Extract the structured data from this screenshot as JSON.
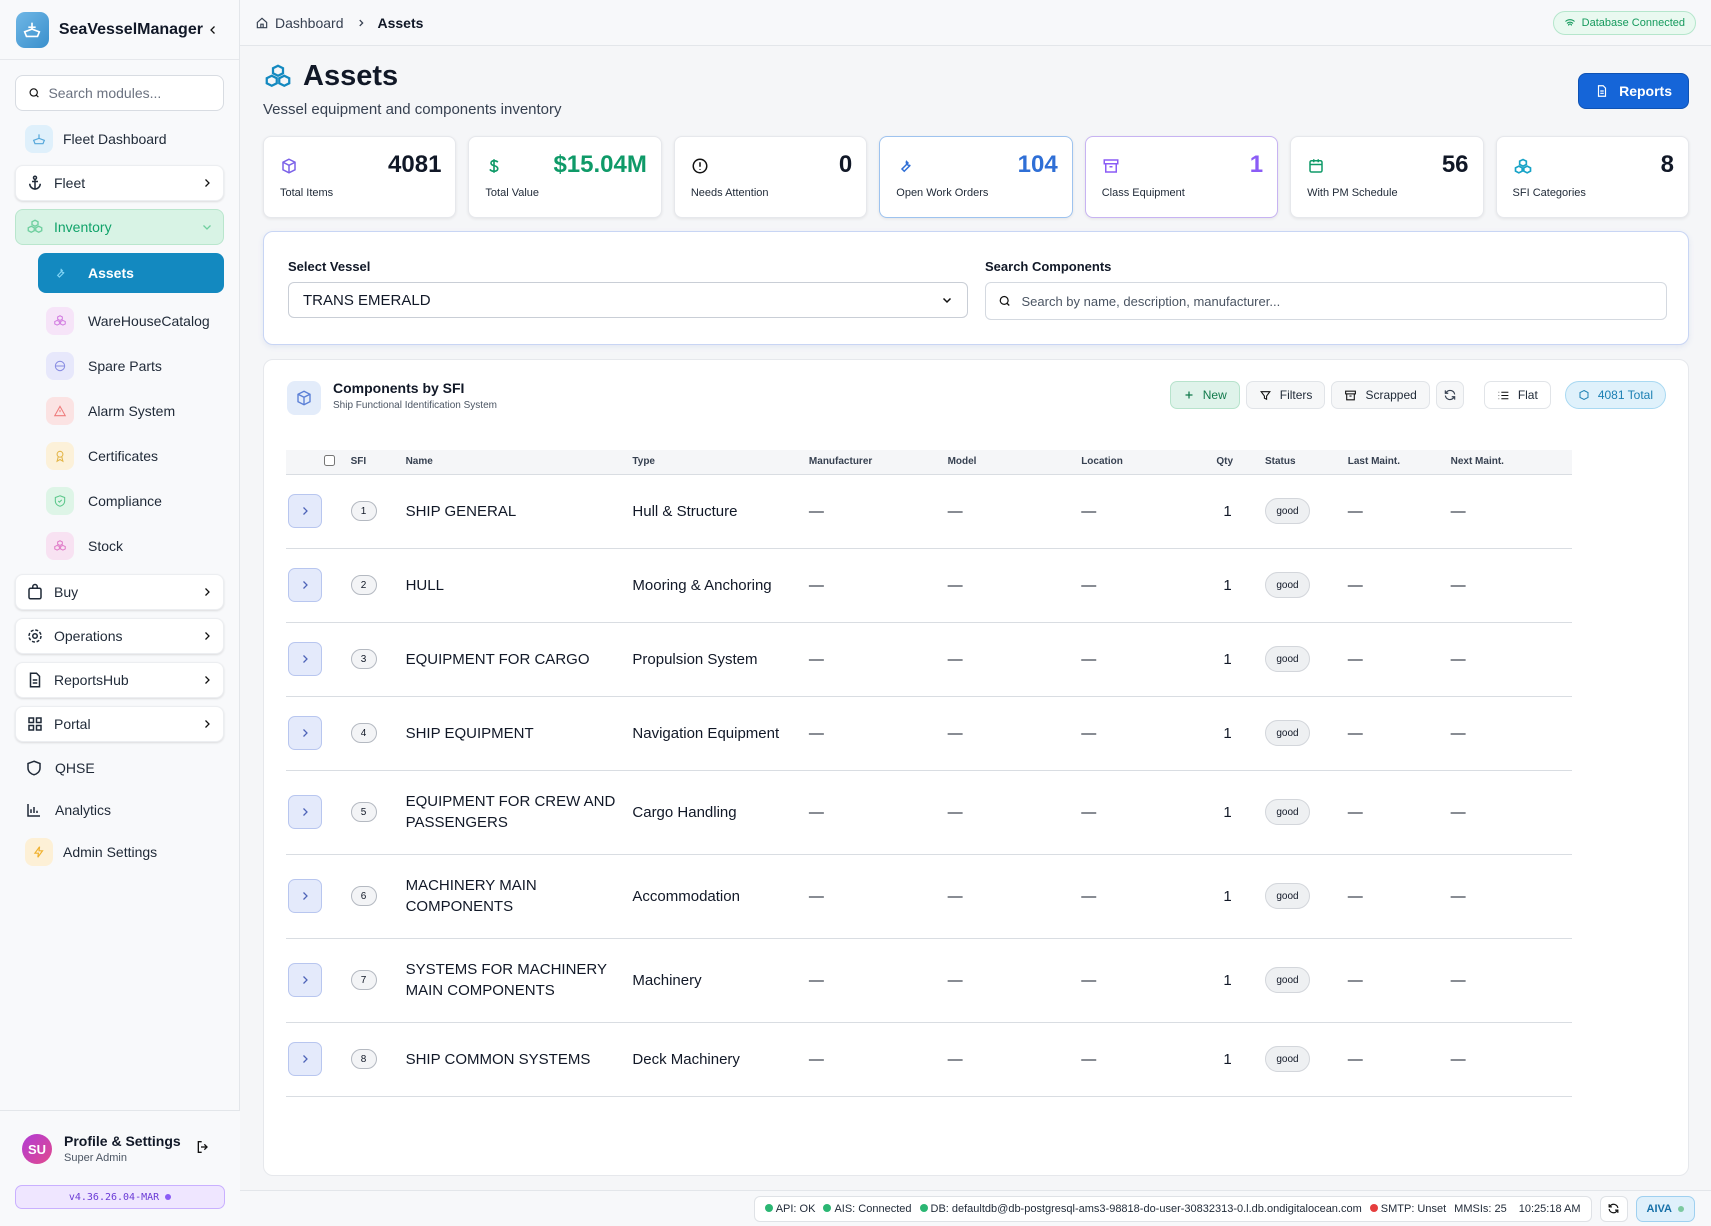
{
  "app": {
    "name": "SeaVesselManager"
  },
  "sidebar": {
    "search_placeholder": "Search modules...",
    "fleet_dashboard": "Fleet Dashboard",
    "fleet": "Fleet",
    "inventory": "Inventory",
    "inventory_items": [
      "Assets",
      "WareHouseCatalog",
      "Spare Parts",
      "Alarm System",
      "Certificates",
      "Compliance",
      "Stock"
    ],
    "buy": "Buy",
    "operations": "Operations",
    "reports_hub": "ReportsHub",
    "portal": "Portal",
    "qhse": "QHSE",
    "analytics": "Analytics",
    "admin_settings": "Admin Settings",
    "profile": {
      "initials": "SU",
      "name": "Profile & Settings",
      "role": "Super Admin"
    },
    "version": "v4.36.26.04-MAR"
  },
  "breadcrumb": {
    "home": "Dashboard",
    "current": "Assets"
  },
  "db_status": "Database Connected",
  "page": {
    "title": "Assets",
    "subtitle": "Vessel equipment and components inventory",
    "reports_label": "Reports"
  },
  "stats": [
    {
      "value": "4081",
      "label": "Total Items",
      "color": "#111827"
    },
    {
      "value": "$15.04M",
      "label": "Total Value",
      "color": "#0f9a68"
    },
    {
      "value": "0",
      "label": "Needs Attention",
      "color": "#111827"
    },
    {
      "value": "104",
      "label": "Open Work Orders",
      "color": "#2f6fd6"
    },
    {
      "value": "1",
      "label": "Class Equipment",
      "color": "#8b5cf6"
    },
    {
      "value": "56",
      "label": "With PM Schedule",
      "color": "#111827"
    },
    {
      "value": "8",
      "label": "SFI Categories",
      "color": "#111827"
    }
  ],
  "filters": {
    "vessel_label": "Select Vessel",
    "vessel_value": "TRANS EMERALD",
    "search_label": "Search Components",
    "search_placeholder": "Search by name, description, manufacturer..."
  },
  "components": {
    "title": "Components by SFI",
    "subtitle": "Ship Functional Identification System",
    "new_label": "New",
    "filters_label": "Filters",
    "scrapped_label": "Scrapped",
    "flat_label": "Flat",
    "total_label": "4081 Total",
    "columns": [
      "SFI",
      "Name",
      "Type",
      "Manufacturer",
      "Model",
      "Location",
      "Qty",
      "Status",
      "Last Maint.",
      "Next Maint."
    ],
    "rows": [
      {
        "sfi": "1",
        "name": "SHIP GENERAL",
        "type": "Hull & Structure",
        "manufacturer": "—",
        "model": "—",
        "location": "—",
        "qty": "1",
        "status": "good",
        "last": "—",
        "next": "—"
      },
      {
        "sfi": "2",
        "name": "HULL",
        "type": "Mooring & Anchoring",
        "manufacturer": "—",
        "model": "—",
        "location": "—",
        "qty": "1",
        "status": "good",
        "last": "—",
        "next": "—"
      },
      {
        "sfi": "3",
        "name": "EQUIPMENT FOR CARGO",
        "type": "Propulsion System",
        "manufacturer": "—",
        "model": "—",
        "location": "—",
        "qty": "1",
        "status": "good",
        "last": "—",
        "next": "—"
      },
      {
        "sfi": "4",
        "name": "SHIP EQUIPMENT",
        "type": "Navigation Equipment",
        "manufacturer": "—",
        "model": "—",
        "location": "—",
        "qty": "1",
        "status": "good",
        "last": "—",
        "next": "—"
      },
      {
        "sfi": "5",
        "name": "EQUIPMENT FOR CREW AND PASSENGERS",
        "type": "Cargo Handling",
        "manufacturer": "—",
        "model": "—",
        "location": "—",
        "qty": "1",
        "status": "good",
        "last": "—",
        "next": "—"
      },
      {
        "sfi": "6",
        "name": "MACHINERY MAIN COMPONENTS",
        "type": "Accommodation",
        "manufacturer": "—",
        "model": "—",
        "location": "—",
        "qty": "1",
        "status": "good",
        "last": "—",
        "next": "—"
      },
      {
        "sfi": "7",
        "name": "SYSTEMS FOR MACHINERY MAIN COMPONENTS",
        "type": "Machinery",
        "manufacturer": "—",
        "model": "—",
        "location": "—",
        "qty": "1",
        "status": "good",
        "last": "—",
        "next": "—"
      },
      {
        "sfi": "8",
        "name": "SHIP COMMON SYSTEMS",
        "type": "Deck Machinery",
        "manufacturer": "—",
        "model": "—",
        "location": "—",
        "qty": "1",
        "status": "good",
        "last": "—",
        "next": "—"
      }
    ]
  },
  "statusbar": {
    "api": "API: OK",
    "ais": "AIS: Connected",
    "db": "DB: defaultdb@db-postgresql-ams3-98818-do-user-30832313-0.l.db.ondigitalocean.com",
    "smtp": "SMTP: Unset",
    "mmsis": "MMSIs: 25",
    "time": "10:25:18 AM",
    "aiva": "AIVA"
  }
}
